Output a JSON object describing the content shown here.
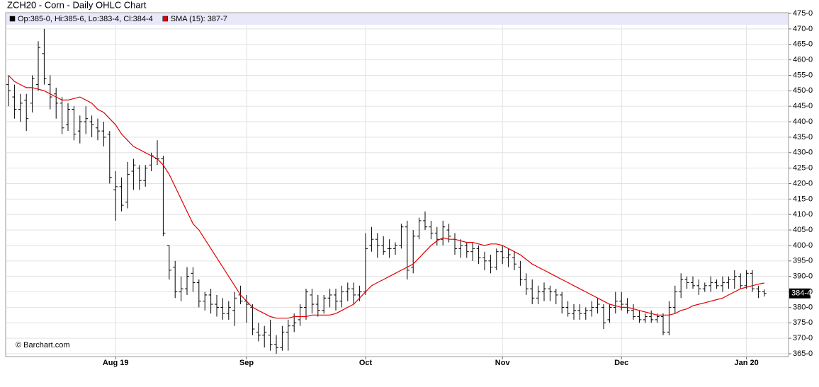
{
  "chart_data": {
    "type": "ohlc",
    "title": "ZCH20 - Corn - Daily OHLC Chart",
    "credit": "© Barchart.com",
    "legend": [
      {
        "text": "Op:385-0, Hi:385-6, Lo:383-4, Cl:384-4",
        "color": "#000000"
      },
      {
        "text": "SMA (15): 387-7",
        "color": "#e00000"
      }
    ],
    "grid": true,
    "bar_color": "#000000",
    "ylim": [
      365,
      475
    ],
    "yticks": [
      {
        "value": 365,
        "label": "365-0"
      },
      {
        "value": 370,
        "label": "370-0"
      },
      {
        "value": 375,
        "label": "375-0"
      },
      {
        "value": 380,
        "label": "380-0"
      },
      {
        "value": 385,
        "label": "385-0"
      },
      {
        "value": 390,
        "label": "390-0"
      },
      {
        "value": 395,
        "label": "395-0"
      },
      {
        "value": 400,
        "label": "400-0"
      },
      {
        "value": 405,
        "label": "405-0"
      },
      {
        "value": 410,
        "label": "410-0"
      },
      {
        "value": 415,
        "label": "415-0"
      },
      {
        "value": 420,
        "label": "420-0"
      },
      {
        "value": 425,
        "label": "425-0"
      },
      {
        "value": 430,
        "label": "430-0"
      },
      {
        "value": 435,
        "label": "435-0"
      },
      {
        "value": 440,
        "label": "440-0"
      },
      {
        "value": 445,
        "label": "445-0"
      },
      {
        "value": 450,
        "label": "450-0"
      },
      {
        "value": 455,
        "label": "455-0"
      },
      {
        "value": 460,
        "label": "460-0"
      },
      {
        "value": 465,
        "label": "465-0"
      },
      {
        "value": 470,
        "label": "470-0"
      },
      {
        "value": 475,
        "label": "475-0"
      }
    ],
    "last_price": {
      "value": 384.5,
      "label": "384-4"
    },
    "categories": [
      null,
      null,
      null,
      null,
      null,
      null,
      null,
      null,
      null,
      null,
      null,
      null,
      null,
      null,
      null,
      null,
      null,
      null,
      "Aug 19",
      null,
      null,
      null,
      null,
      null,
      null,
      null,
      null,
      null,
      null,
      null,
      null,
      null,
      null,
      null,
      null,
      null,
      null,
      null,
      null,
      null,
      "Sep",
      null,
      null,
      null,
      null,
      null,
      null,
      null,
      null,
      null,
      null,
      null,
      null,
      null,
      null,
      null,
      null,
      null,
      null,
      null,
      "Oct",
      null,
      null,
      null,
      null,
      null,
      null,
      null,
      null,
      null,
      null,
      null,
      null,
      null,
      null,
      null,
      null,
      null,
      null,
      null,
      null,
      null,
      null,
      "Nov",
      null,
      null,
      null,
      null,
      null,
      null,
      null,
      null,
      null,
      null,
      null,
      null,
      null,
      null,
      null,
      null,
      null,
      null,
      null,
      "Dec",
      null,
      null,
      null,
      null,
      null,
      null,
      null,
      null,
      null,
      null,
      null,
      null,
      null,
      null,
      null,
      null,
      null,
      null,
      null,
      null,
      "Jan 20",
      null,
      null,
      null
    ],
    "ohlc": [
      [
        452,
        455,
        445,
        450
      ],
      [
        448,
        452,
        441,
        444
      ],
      [
        444,
        449,
        440,
        446
      ],
      [
        447,
        449,
        437,
        441
      ],
      [
        446,
        455,
        443,
        454
      ],
      [
        452,
        466,
        450,
        464
      ],
      [
        462,
        470,
        452,
        454
      ],
      [
        452,
        455,
        444,
        448
      ],
      [
        449,
        451,
        441,
        446
      ],
      [
        446,
        448,
        436,
        438
      ],
      [
        439,
        446,
        437,
        444
      ],
      [
        444,
        445,
        434,
        436
      ],
      [
        437,
        442,
        433,
        440
      ],
      [
        440,
        445,
        436,
        441
      ],
      [
        440,
        442,
        435,
        439
      ],
      [
        438,
        441,
        434,
        437
      ],
      [
        437,
        440,
        432,
        435
      ],
      [
        436,
        437,
        420,
        422
      ],
      [
        418,
        424,
        408,
        419
      ],
      [
        419,
        422,
        411,
        413
      ],
      [
        414,
        427,
        412,
        423
      ],
      [
        424,
        428,
        418,
        426
      ],
      [
        425,
        426,
        418,
        421
      ],
      [
        421,
        426,
        419,
        425
      ],
      [
        426,
        430,
        424,
        429
      ],
      [
        428,
        434,
        426,
        428
      ],
      [
        428,
        429,
        403,
        404
      ],
      [
        400,
        400,
        389,
        392
      ],
      [
        393,
        395,
        383,
        385
      ],
      [
        385,
        390,
        382,
        386
      ],
      [
        386,
        393,
        384,
        390
      ],
      [
        391,
        393,
        385,
        388
      ],
      [
        388,
        389,
        380,
        382
      ],
      [
        382,
        385,
        379,
        384
      ],
      [
        384,
        386,
        378,
        381
      ],
      [
        381,
        384,
        377,
        380
      ],
      [
        380,
        383,
        376,
        378
      ],
      [
        378,
        382,
        376,
        380
      ],
      [
        379,
        385,
        374,
        383
      ],
      [
        384,
        387,
        381,
        382
      ],
      [
        382,
        384,
        375,
        381
      ],
      [
        380,
        381,
        371,
        373
      ],
      [
        372,
        375,
        369,
        371
      ],
      [
        371,
        374,
        367,
        372
      ],
      [
        371,
        376,
        366,
        368
      ],
      [
        368,
        371,
        365,
        367
      ],
      [
        367,
        374,
        366,
        372
      ],
      [
        372,
        376,
        366,
        374
      ],
      [
        374,
        378,
        372,
        375
      ],
      [
        376,
        381,
        374,
        380
      ],
      [
        380,
        386,
        376,
        385
      ],
      [
        384,
        386,
        378,
        381
      ],
      [
        381,
        384,
        377,
        379
      ],
      [
        379,
        384,
        378,
        383
      ],
      [
        383,
        386,
        380,
        384
      ],
      [
        384,
        386,
        379,
        382
      ],
      [
        382,
        387,
        380,
        385
      ],
      [
        385,
        388,
        382,
        386
      ],
      [
        386,
        388,
        381,
        384
      ],
      [
        384,
        387,
        382,
        385
      ],
      [
        385,
        404,
        384,
        399
      ],
      [
        400,
        406,
        398,
        402
      ],
      [
        402,
        404,
        396,
        400
      ],
      [
        400,
        403,
        397,
        398
      ],
      [
        399,
        402,
        396,
        399
      ],
      [
        399,
        401,
        397,
        400
      ],
      [
        400,
        407,
        399,
        406
      ],
      [
        406,
        408,
        389,
        392
      ],
      [
        393,
        405,
        391,
        403
      ],
      [
        403,
        409,
        402,
        408
      ],
      [
        408,
        411,
        405,
        406
      ],
      [
        406,
        408,
        402,
        404
      ],
      [
        404,
        406,
        400,
        402
      ],
      [
        402,
        408,
        400,
        406
      ],
      [
        405,
        407,
        401,
        403
      ],
      [
        402,
        404,
        397,
        399
      ],
      [
        399,
        402,
        396,
        400
      ],
      [
        400,
        401,
        396,
        398
      ],
      [
        398,
        401,
        395,
        399
      ],
      [
        399,
        400,
        394,
        396
      ],
      [
        396,
        398,
        392,
        395
      ],
      [
        395,
        397,
        391,
        393
      ],
      [
        393,
        399,
        392,
        398
      ],
      [
        398,
        400,
        394,
        396
      ],
      [
        396,
        399,
        393,
        397
      ],
      [
        396,
        398,
        392,
        394
      ],
      [
        393,
        395,
        387,
        389
      ],
      [
        389,
        391,
        384,
        386
      ],
      [
        386,
        389,
        381,
        383
      ],
      [
        383,
        387,
        381,
        385
      ],
      [
        385,
        388,
        382,
        386
      ],
      [
        386,
        387,
        382,
        385
      ],
      [
        385,
        386,
        381,
        384
      ],
      [
        384,
        385,
        378,
        380
      ],
      [
        380,
        382,
        377,
        378
      ],
      [
        378,
        381,
        376,
        379
      ],
      [
        379,
        381,
        376,
        378
      ],
      [
        378,
        380,
        376,
        379
      ],
      [
        379,
        382,
        377,
        380
      ],
      [
        380,
        383,
        378,
        381
      ],
      [
        380,
        381,
        373,
        375
      ],
      [
        376,
        381,
        375,
        380
      ],
      [
        380,
        385,
        378,
        382
      ],
      [
        382,
        385,
        379,
        381
      ],
      [
        381,
        383,
        378,
        379
      ],
      [
        379,
        381,
        376,
        377
      ],
      [
        377,
        379,
        375,
        376
      ],
      [
        376,
        378,
        375,
        377
      ],
      [
        377,
        379,
        375,
        376
      ],
      [
        376,
        378,
        375,
        377
      ],
      [
        377,
        378,
        371,
        372
      ],
      [
        372,
        382,
        371,
        380
      ],
      [
        380,
        387,
        378,
        385
      ],
      [
        385,
        391,
        383,
        389
      ],
      [
        389,
        390,
        386,
        388
      ],
      [
        388,
        390,
        386,
        387
      ],
      [
        387,
        389,
        384,
        386
      ],
      [
        386,
        388,
        385,
        387
      ],
      [
        387,
        390,
        385,
        388
      ],
      [
        388,
        389,
        386,
        387
      ],
      [
        387,
        390,
        385,
        388
      ],
      [
        388,
        390,
        386,
        389
      ],
      [
        389,
        392,
        386,
        390
      ],
      [
        390,
        391,
        386,
        387
      ],
      [
        387,
        392,
        386,
        391
      ],
      [
        391,
        392,
        385,
        386
      ],
      [
        386,
        387,
        383,
        385
      ],
      [
        385,
        385.75,
        383.5,
        384.5
      ]
    ],
    "sma": {
      "name": "SMA (15)",
      "color": "#e00000",
      "values": [
        455,
        453,
        452,
        451,
        451,
        450.5,
        450,
        449,
        448,
        447,
        447,
        447.5,
        448,
        447,
        446,
        444,
        443,
        441,
        439,
        436,
        434,
        432,
        431,
        430,
        429,
        428,
        426,
        423,
        419,
        415,
        411,
        407,
        405,
        402,
        399,
        396,
        393,
        390,
        387,
        384,
        382,
        380,
        379,
        378,
        377,
        376.5,
        376.5,
        376.5,
        377,
        377,
        377,
        377.5,
        377.5,
        377.5,
        377.5,
        378,
        379,
        380,
        381,
        383,
        385,
        387,
        388,
        389,
        390,
        391,
        392,
        393,
        394,
        396,
        398,
        400,
        401.5,
        402.5,
        402,
        402,
        401.5,
        401,
        401,
        400.5,
        400,
        400.5,
        400.5,
        400,
        399,
        398,
        397,
        395.5,
        394,
        393,
        392,
        391,
        390,
        389,
        388,
        387,
        386,
        385,
        384,
        383,
        382,
        381,
        380.5,
        380,
        380,
        379.5,
        379,
        378.5,
        378,
        377.5,
        377.5,
        377.5,
        378,
        379,
        379.5,
        380.5,
        381,
        381.5,
        382,
        382.5,
        383,
        384,
        385,
        386,
        386.5,
        387,
        387.5,
        387.875
      ]
    }
  }
}
